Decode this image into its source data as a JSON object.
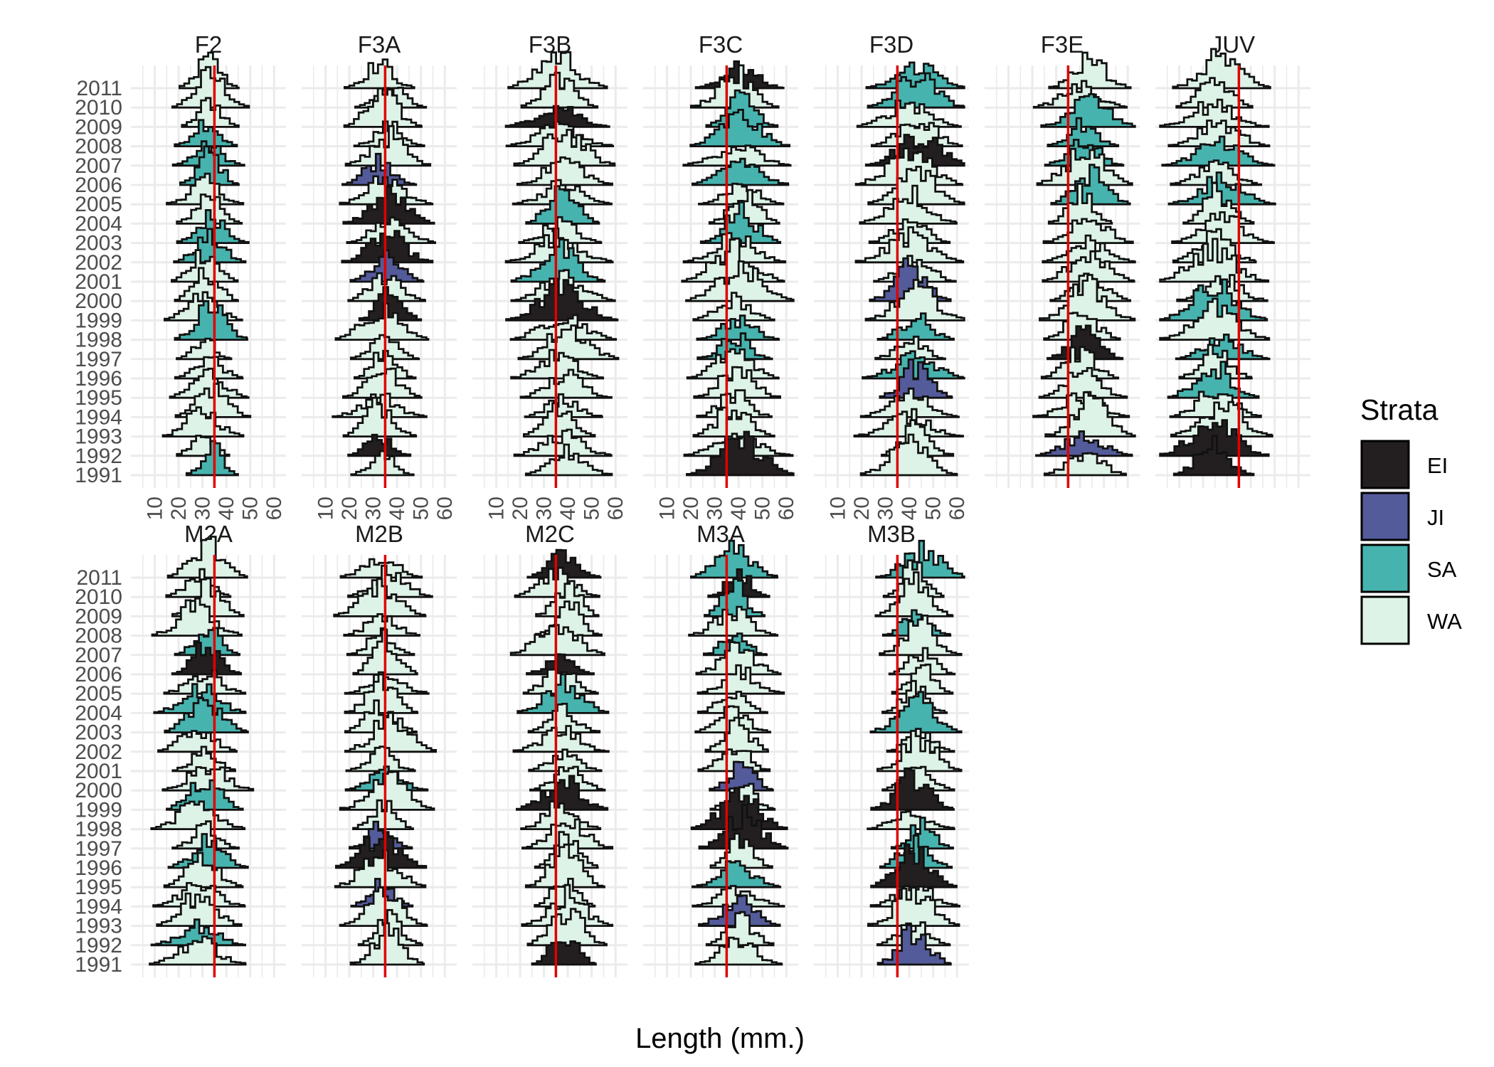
{
  "chart_data": {
    "type": "ridgeline-histogram",
    "xlabel": "Length (mm.)",
    "ylabel": "",
    "x_ticks": [
      10,
      20,
      30,
      40,
      50,
      60
    ],
    "xlim": [
      0,
      65
    ],
    "years": [
      "1991",
      "1992",
      "1993",
      "1994",
      "1995",
      "1996",
      "1997",
      "1998",
      "1999",
      "2000",
      "2001",
      "2002",
      "2003",
      "2004",
      "2005",
      "2006",
      "2007",
      "2008",
      "2009",
      "2010",
      "2011"
    ],
    "reference_line_mm": 35,
    "reference_line_color": "#e00000",
    "legend": {
      "title": "Strata",
      "position": "right",
      "entries": [
        {
          "label": "EI",
          "color": "#231f20"
        },
        {
          "label": "JI",
          "color": "#545b9a"
        },
        {
          "label": "SA",
          "color": "#47b3ae"
        },
        {
          "label": "WA",
          "color": "#def3e7"
        }
      ]
    },
    "panels": [
      {
        "name": "F2",
        "center": 32,
        "spread": 5
      },
      {
        "name": "F3A",
        "center": 35,
        "spread": 6
      },
      {
        "name": "F3B",
        "center": 38,
        "spread": 7
      },
      {
        "name": "F3C",
        "center": 40,
        "spread": 7
      },
      {
        "name": "F3D",
        "center": 42,
        "spread": 7
      },
      {
        "name": "F3E",
        "center": 42,
        "spread": 6
      },
      {
        "name": "JUV",
        "center": 26,
        "spread": 7
      },
      {
        "name": "M2A",
        "center": 30,
        "spread": 6
      },
      {
        "name": "M2B",
        "center": 35,
        "spread": 6
      },
      {
        "name": "M2C",
        "center": 38,
        "spread": 6
      },
      {
        "name": "M3A",
        "center": 40,
        "spread": 6
      },
      {
        "name": "M3B",
        "center": 43,
        "spread": 6
      }
    ]
  }
}
